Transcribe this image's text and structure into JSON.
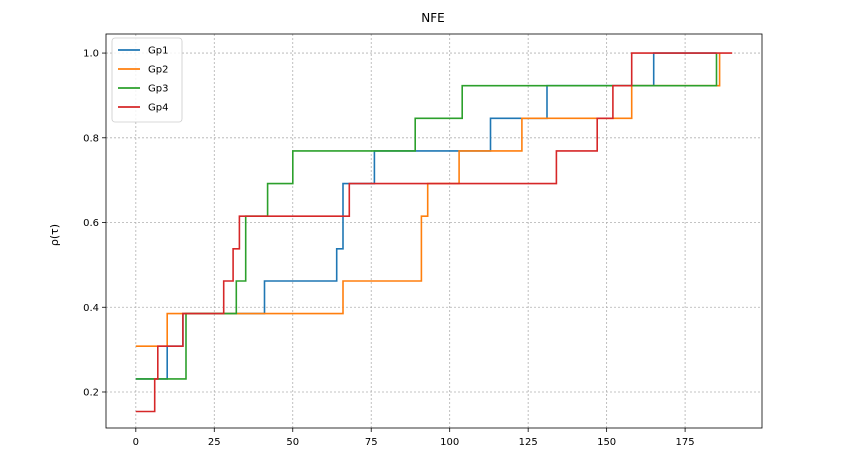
{
  "chart_data": {
    "type": "line",
    "title": "NFE",
    "xlabel": "",
    "ylabel": "ρ(τ)",
    "xlim": [
      -9.5,
      199.5
    ],
    "ylim": [
      0.115,
      1.045
    ],
    "xticks": [
      0,
      25,
      50,
      75,
      100,
      125,
      150,
      175
    ],
    "yticks": [
      0.2,
      0.4,
      0.6,
      0.8,
      1.0
    ],
    "xtick_labels": [
      "0",
      "25",
      "50",
      "75",
      "100",
      "125",
      "150",
      "175"
    ],
    "ytick_labels": [
      "0.2",
      "0.4",
      "0.6",
      "0.8",
      "1.0"
    ],
    "grid": true,
    "legend_position": "top-left",
    "series": [
      {
        "name": "Gp1",
        "color": "#1f77b4",
        "x": [
          0,
          10,
          15,
          40,
          41,
          63,
          64,
          66,
          76,
          111,
          113,
          130,
          131,
          164,
          165,
          184,
          185
        ],
        "y": [
          0.231,
          0.308,
          0.385,
          0.385,
          0.462,
          0.462,
          0.538,
          0.692,
          0.769,
          0.769,
          0.846,
          0.846,
          0.923,
          0.923,
          1.0,
          1.0,
          1.0
        ]
      },
      {
        "name": "Gp2",
        "color": "#ff7f0e",
        "x": [
          0,
          10,
          65,
          66,
          90,
          91,
          93,
          102,
          103,
          121,
          123,
          156,
          158,
          184,
          186
        ],
        "y": [
          0.308,
          0.385,
          0.385,
          0.462,
          0.462,
          0.615,
          0.692,
          0.692,
          0.769,
          0.769,
          0.846,
          0.846,
          0.923,
          0.923,
          1.0
        ]
      },
      {
        "name": "Gp3",
        "color": "#2ca02c",
        "x": [
          0,
          15,
          16,
          31,
          32,
          35,
          42,
          50,
          87,
          89,
          103,
          104,
          184,
          185
        ],
        "y": [
          0.231,
          0.231,
          0.385,
          0.385,
          0.462,
          0.615,
          0.692,
          0.769,
          0.769,
          0.846,
          0.846,
          0.923,
          0.923,
          1.0
        ]
      },
      {
        "name": "Gp4",
        "color": "#d62728",
        "x": [
          0,
          5,
          6,
          7,
          12,
          15,
          27,
          28,
          31,
          33,
          67,
          68,
          69,
          133,
          134,
          145,
          147,
          151,
          152,
          156,
          158,
          190
        ],
        "y": [
          0.154,
          0.154,
          0.231,
          0.308,
          0.308,
          0.385,
          0.385,
          0.462,
          0.538,
          0.615,
          0.615,
          0.692,
          0.692,
          0.692,
          0.769,
          0.769,
          0.846,
          0.846,
          0.923,
          0.923,
          1.0,
          1.0
        ]
      }
    ]
  }
}
